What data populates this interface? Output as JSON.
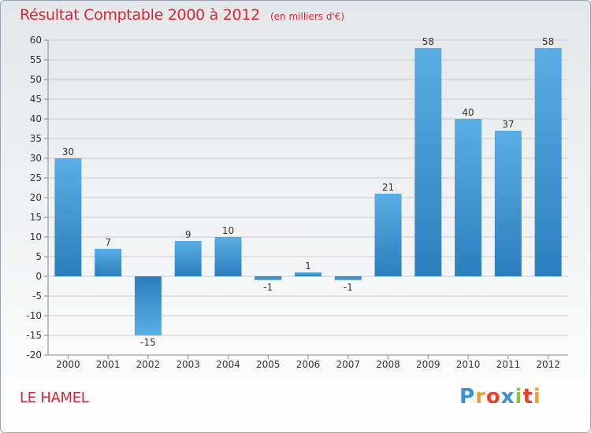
{
  "chart_data": {
    "type": "bar",
    "title": "Résultat Comptable 2000 à 2012",
    "unit_label": "(en milliers d'€)",
    "categories": [
      "2000",
      "2001",
      "2002",
      "2003",
      "2004",
      "2005",
      "2006",
      "2007",
      "2008",
      "2009",
      "2010",
      "2011",
      "2012"
    ],
    "values": [
      30,
      7,
      -15,
      9,
      10,
      -1,
      1,
      -1,
      21,
      58,
      40,
      37,
      58
    ],
    "data_labels": [
      "30",
      "7",
      "-15",
      "9",
      "10",
      "-1",
      "1",
      "-1",
      "21",
      "58",
      "40",
      "37",
      "58"
    ],
    "ylim": [
      -20,
      60
    ],
    "yticks": [
      60,
      55,
      50,
      45,
      40,
      35,
      30,
      25,
      20,
      15,
      10,
      5,
      0,
      -5,
      -10,
      -15,
      -20
    ],
    "xlabel": "",
    "ylabel": "",
    "grid": true,
    "legend": "none",
    "colors": {
      "bar_light": "#5aaee6",
      "bar_dark": "#2a7fbd",
      "title": "#d3283a",
      "grid": "#c8ccd0"
    }
  },
  "footer": {
    "commune": "LE HAMEL"
  },
  "logo": {
    "letters": [
      "P",
      "r",
      "o",
      "x",
      "i",
      "t",
      "i"
    ],
    "colors": [
      "#3a8fd8",
      "#f0a030",
      "#e8402a",
      "#3a8fd8",
      "#8cc63f",
      "#e8402a",
      "#f0a030"
    ]
  }
}
